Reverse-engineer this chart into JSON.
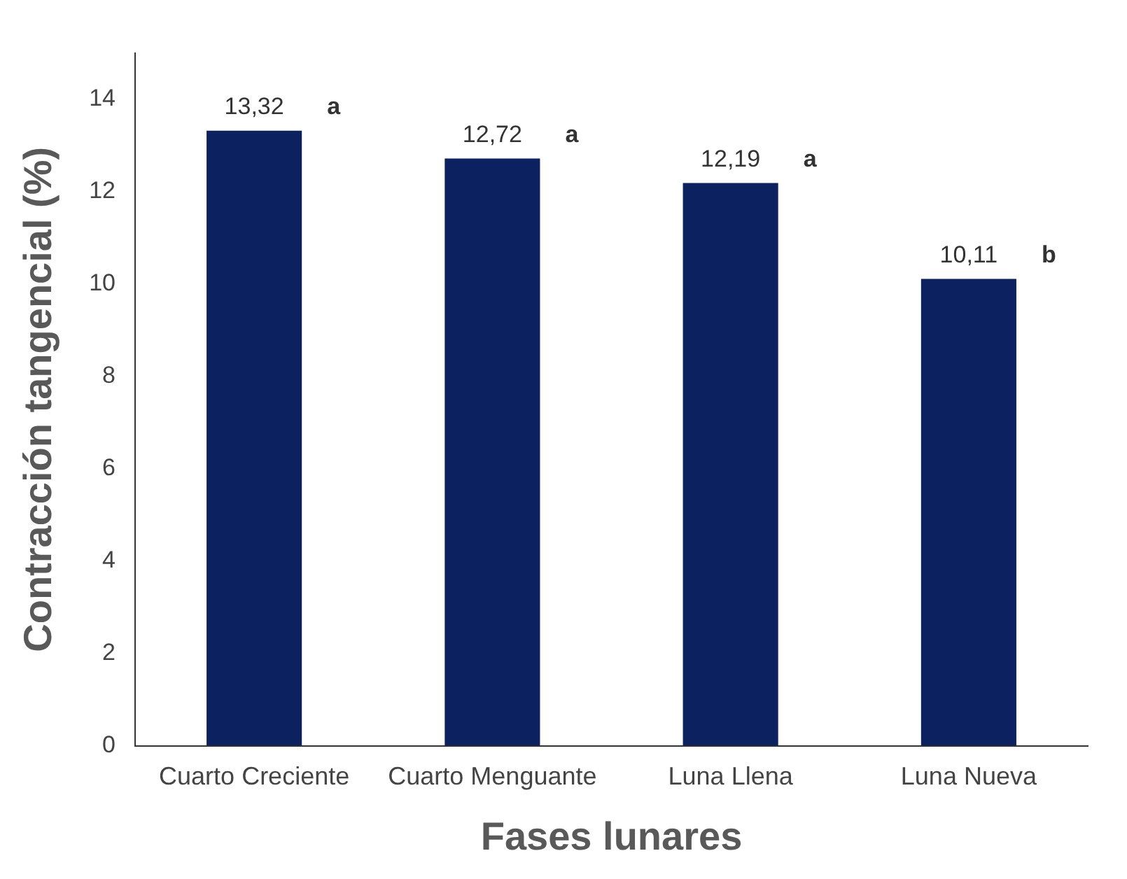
{
  "chart_data": {
    "type": "bar",
    "xlabel": "Fases lunares",
    "ylabel": "Contracción tangencial (%)",
    "categories": [
      "Cuarto Creciente",
      "Cuarto Menguante",
      "Luna Llena",
      "Luna Nueva"
    ],
    "values": [
      13.32,
      12.72,
      12.19,
      10.11
    ],
    "value_labels": [
      "13,32",
      "12,72",
      "12,19",
      "10,11"
    ],
    "color": "#0c2160",
    "ylim": [
      0,
      15
    ],
    "yticks": [
      0,
      2,
      4,
      6,
      8,
      10,
      12,
      14
    ],
    "grid": false,
    "legend": false,
    "annotations": [
      "a",
      "a",
      "a",
      "b"
    ]
  }
}
